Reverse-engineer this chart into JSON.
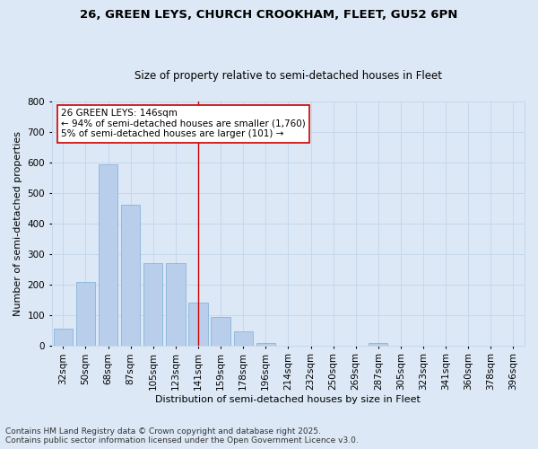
{
  "title_line1": "26, GREEN LEYS, CHURCH CROOKHAM, FLEET, GU52 6PN",
  "title_line2": "Size of property relative to semi-detached houses in Fleet",
  "xlabel": "Distribution of semi-detached houses by size in Fleet",
  "ylabel": "Number of semi-detached properties",
  "categories": [
    "32sqm",
    "50sqm",
    "68sqm",
    "87sqm",
    "105sqm",
    "123sqm",
    "141sqm",
    "159sqm",
    "178sqm",
    "196sqm",
    "214sqm",
    "232sqm",
    "250sqm",
    "269sqm",
    "287sqm",
    "305sqm",
    "323sqm",
    "341sqm",
    "360sqm",
    "378sqm",
    "396sqm"
  ],
  "values": [
    55,
    207,
    593,
    462,
    270,
    270,
    140,
    93,
    45,
    7,
    0,
    0,
    0,
    0,
    7,
    0,
    0,
    0,
    0,
    0,
    0
  ],
  "bar_color": "#b8ceea",
  "bar_edge_color": "#7aaed6",
  "grid_color": "#c5d8ec",
  "background_color": "#dce8f5",
  "vline_x_index": 6,
  "vline_color": "#cc0000",
  "annotation_text": "26 GREEN LEYS: 146sqm\n← 94% of semi-detached houses are smaller (1,760)\n5% of semi-detached houses are larger (101) →",
  "annotation_box_facecolor": "#ffffff",
  "annotation_box_edgecolor": "#cc0000",
  "ylim": [
    0,
    800
  ],
  "yticks": [
    0,
    100,
    200,
    300,
    400,
    500,
    600,
    700,
    800
  ],
  "footer_text": "Contains HM Land Registry data © Crown copyright and database right 2025.\nContains public sector information licensed under the Open Government Licence v3.0.",
  "title_fontsize": 9.5,
  "subtitle_fontsize": 8.5,
  "axis_label_fontsize": 8,
  "tick_fontsize": 7.5,
  "annotation_fontsize": 7.5,
  "footer_fontsize": 6.5
}
